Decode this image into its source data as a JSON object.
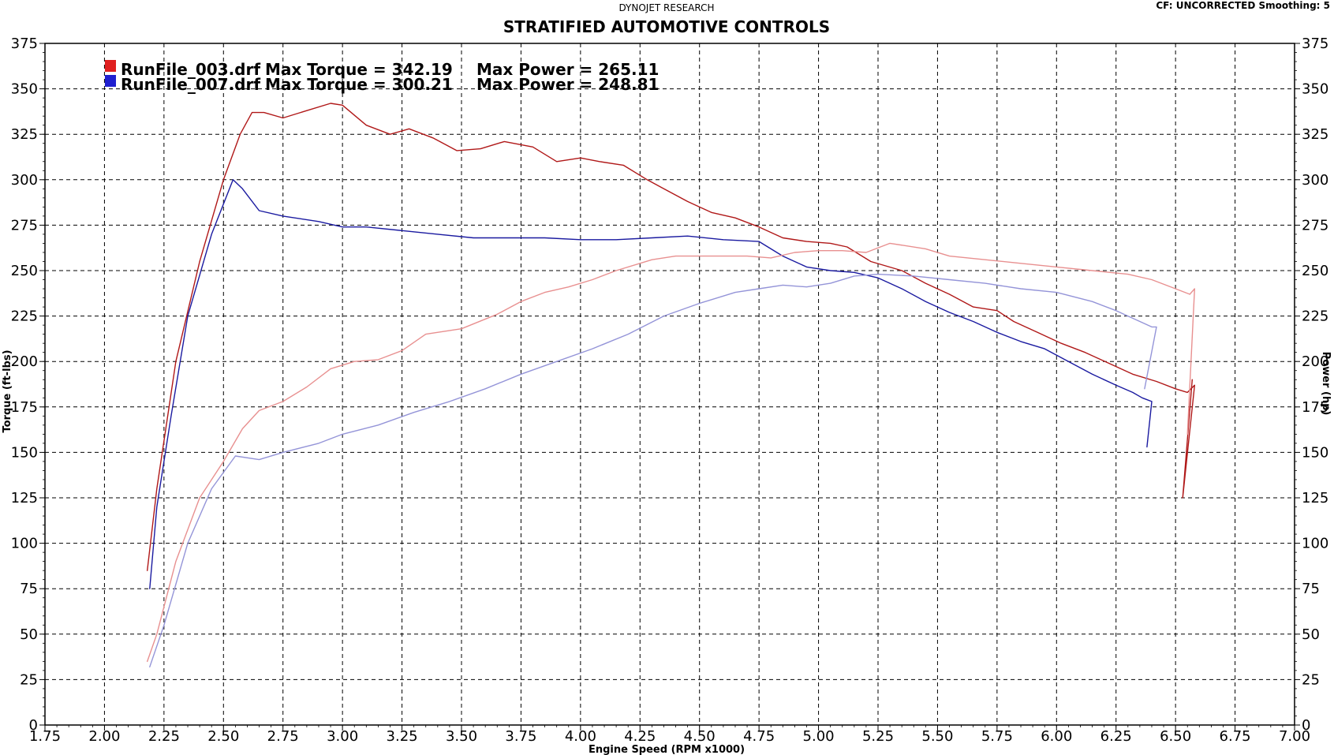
{
  "header": {
    "top_center": "DYNOJET RESEARCH",
    "top_right": "CF: UNCORRECTED  Smoothing: 5",
    "title": "STRATIFIED AUTOMOTIVE CONTROLS"
  },
  "chart_data": {
    "type": "line",
    "title": "STRATIFIED AUTOMOTIVE CONTROLS",
    "xlabel": "Engine Speed (RPM x1000)",
    "ylabel": "Torque (ft-lbs)",
    "y2label": "Power (hp)",
    "xlim": [
      1.75,
      7.0
    ],
    "ylim": [
      0,
      375
    ],
    "y2lim": [
      0,
      375
    ],
    "x_ticks": [
      "1.75",
      "2.00",
      "2.25",
      "2.50",
      "2.75",
      "3.00",
      "3.25",
      "3.50",
      "3.75",
      "4.00",
      "4.25",
      "4.50",
      "4.75",
      "5.00",
      "5.25",
      "5.50",
      "5.75",
      "6.00",
      "6.25",
      "6.50",
      "6.75",
      "7.00"
    ],
    "y_ticks": [
      "0",
      "25",
      "50",
      "75",
      "100",
      "125",
      "150",
      "175",
      "200",
      "225",
      "250",
      "275",
      "300",
      "325",
      "350",
      "375"
    ],
    "grid": true,
    "legend_placement": "top-left",
    "legend": [
      {
        "file": "RunFile_003.drf",
        "max_torque_label": "Max Torque = 342.19",
        "max_power_label": "Max Power = 265.11",
        "color": "#e02020"
      },
      {
        "file": "RunFile_007.drf",
        "max_torque_label": "Max Torque = 300.21",
        "max_power_label": "Max Power = 248.81",
        "color": "#2020d0"
      }
    ],
    "series": [
      {
        "name": "RunFile_003.drf Torque",
        "kind": "torque",
        "color": "#b01818",
        "x": [
          2.18,
          2.22,
          2.3,
          2.4,
          2.5,
          2.57,
          2.62,
          2.67,
          2.75,
          2.85,
          2.95,
          3.0,
          3.1,
          3.2,
          3.28,
          3.38,
          3.48,
          3.58,
          3.68,
          3.8,
          3.9,
          4.0,
          4.08,
          4.18,
          4.28,
          4.35,
          4.45,
          4.55,
          4.65,
          4.75,
          4.85,
          4.95,
          5.05,
          5.12,
          5.22,
          5.35,
          5.45,
          5.55,
          5.65,
          5.75,
          5.82,
          5.92,
          6.02,
          6.12,
          6.22,
          6.32,
          6.42,
          6.5,
          6.55,
          6.58,
          6.53,
          6.57
        ],
        "y": [
          85,
          130,
          200,
          255,
          300,
          325,
          337,
          337,
          334,
          338,
          342,
          341,
          330,
          325,
          328,
          323,
          316,
          317,
          321,
          318,
          310,
          312,
          310,
          308,
          300,
          295,
          288,
          282,
          279,
          274,
          268,
          266,
          265,
          263,
          255,
          250,
          243,
          237,
          230,
          228,
          222,
          216,
          210,
          205,
          199,
          193,
          189,
          185,
          183,
          187,
          125,
          190
        ]
      },
      {
        "name": "RunFile_007.drf Torque",
        "kind": "torque",
        "color": "#1a1aa0",
        "x": [
          2.19,
          2.22,
          2.28,
          2.35,
          2.45,
          2.54,
          2.58,
          2.65,
          2.75,
          2.9,
          3.0,
          3.1,
          3.25,
          3.4,
          3.55,
          3.7,
          3.85,
          4.0,
          4.15,
          4.3,
          4.45,
          4.6,
          4.75,
          4.85,
          4.95,
          5.05,
          5.15,
          5.25,
          5.35,
          5.45,
          5.55,
          5.65,
          5.75,
          5.85,
          5.95,
          6.05,
          6.15,
          6.25,
          6.32,
          6.36,
          6.4,
          6.38
        ],
        "y": [
          75,
          120,
          170,
          225,
          270,
          300,
          295,
          283,
          280,
          277,
          274,
          274,
          272,
          270,
          268,
          268,
          268,
          267,
          267,
          268,
          269,
          267,
          266,
          258,
          252,
          250,
          249,
          246,
          240,
          233,
          227,
          222,
          216,
          211,
          207,
          200,
          193,
          187,
          183,
          180,
          178,
          153
        ]
      },
      {
        "name": "RunFile_003.drf Power",
        "kind": "power",
        "color": "#e89090",
        "x": [
          2.18,
          2.22,
          2.3,
          2.4,
          2.5,
          2.58,
          2.65,
          2.75,
          2.85,
          2.95,
          3.05,
          3.15,
          3.25,
          3.35,
          3.5,
          3.65,
          3.75,
          3.85,
          3.95,
          4.05,
          4.15,
          4.3,
          4.4,
          4.55,
          4.7,
          4.8,
          4.9,
          5.0,
          5.1,
          5.2,
          5.3,
          5.45,
          5.55,
          5.7,
          5.85,
          6.0,
          6.15,
          6.3,
          6.4,
          6.5,
          6.56,
          6.58,
          6.55
        ],
        "y": [
          35,
          50,
          90,
          125,
          145,
          163,
          173,
          178,
          186,
          196,
          200,
          201,
          206,
          215,
          218,
          226,
          233,
          238,
          241,
          245,
          250,
          256,
          258,
          258,
          258,
          257,
          260,
          261,
          261,
          260,
          265,
          262,
          258,
          256,
          254,
          252,
          250,
          248,
          245,
          240,
          237,
          240,
          160
        ]
      },
      {
        "name": "RunFile_007.drf Power",
        "kind": "power",
        "color": "#9494d8",
        "x": [
          2.19,
          2.25,
          2.35,
          2.45,
          2.55,
          2.65,
          2.75,
          2.9,
          3.0,
          3.15,
          3.3,
          3.45,
          3.6,
          3.75,
          3.9,
          4.05,
          4.2,
          4.35,
          4.5,
          4.65,
          4.75,
          4.85,
          4.95,
          5.05,
          5.15,
          5.25,
          5.4,
          5.55,
          5.7,
          5.85,
          6.0,
          6.15,
          6.25,
          6.35,
          6.4,
          6.42,
          6.37
        ],
        "y": [
          32,
          55,
          100,
          130,
          148,
          146,
          150,
          155,
          160,
          165,
          172,
          178,
          185,
          193,
          200,
          207,
          215,
          225,
          232,
          238,
          240,
          242,
          241,
          243,
          247,
          248,
          247,
          245,
          243,
          240,
          238,
          233,
          228,
          222,
          219,
          219,
          185
        ]
      }
    ]
  }
}
